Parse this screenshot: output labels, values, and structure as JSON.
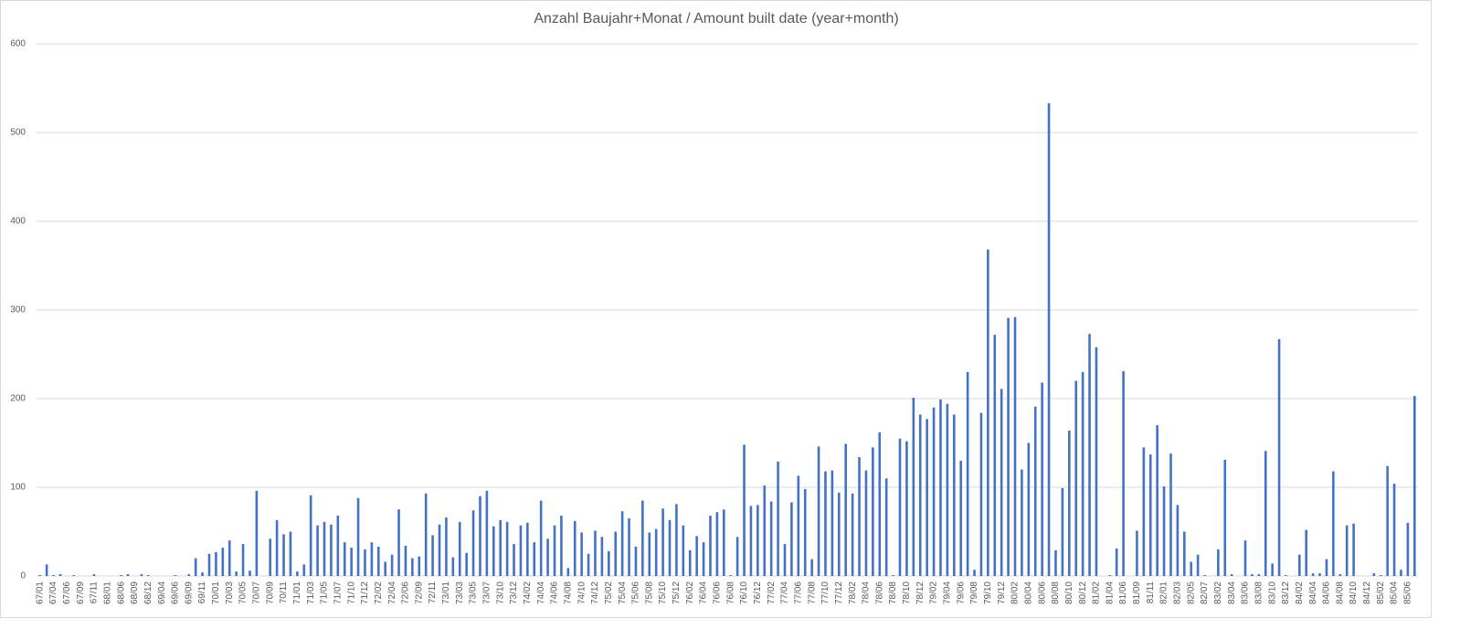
{
  "chart_data": {
    "type": "bar",
    "title": "Anzahl Baujahr+Monat / Amount built date (year+month)",
    "categories": [
      "67/01",
      null,
      "67/04",
      null,
      "67/06",
      null,
      "67/09",
      null,
      "67/11",
      null,
      "68/01",
      null,
      "68/06",
      null,
      "68/09",
      null,
      "68/12",
      null,
      "69/04",
      null,
      "69/06",
      null,
      "69/09",
      null,
      "69/11",
      null,
      "70/01",
      null,
      "70/03",
      null,
      "70/05",
      null,
      "70/07",
      null,
      "70/09",
      null,
      "70/11",
      null,
      "71/01",
      null,
      "71/03",
      null,
      "71/05",
      null,
      "71/07",
      null,
      "71/10",
      null,
      "71/12",
      null,
      "72/02",
      null,
      "72/04",
      null,
      "72/06",
      null,
      "72/09",
      null,
      "72/11",
      null,
      "73/01",
      null,
      "73/03",
      null,
      "73/05",
      null,
      "73/07",
      null,
      "73/10",
      null,
      "73/12",
      null,
      "74/02",
      null,
      "74/04",
      null,
      "74/06",
      null,
      "74/08",
      null,
      "74/10",
      null,
      "74/12",
      null,
      "75/02",
      null,
      "75/04",
      null,
      "75/06",
      null,
      "75/08",
      null,
      "75/10",
      null,
      "75/12",
      null,
      "76/02",
      null,
      "76/04",
      null,
      "76/06",
      null,
      "76/08",
      null,
      "76/10",
      null,
      "76/12",
      null,
      "77/02",
      null,
      "77/04",
      null,
      "77/06",
      null,
      "77/08",
      null,
      "77/10",
      null,
      "77/12",
      null,
      "78/02",
      null,
      "78/04",
      null,
      "78/06",
      null,
      "78/08",
      null,
      "78/10",
      null,
      "78/12",
      null,
      "79/02",
      null,
      "79/04",
      null,
      "79/06",
      null,
      "79/08",
      null,
      "79/10",
      null,
      "79/12",
      null,
      "80/02",
      null,
      "80/04",
      null,
      "80/06",
      null,
      "80/08",
      null,
      "80/10",
      null,
      "80/12",
      null,
      "81/02",
      null,
      "81/04",
      null,
      "81/06",
      null,
      "81/09",
      null,
      "81/11",
      null,
      "82/01",
      null,
      "82/03",
      null,
      "82/05",
      null,
      "82/07",
      null,
      "83/02",
      null,
      "83/04",
      null,
      "83/06",
      null,
      "83/08",
      null,
      "83/10",
      null,
      "83/12",
      null,
      "84/02",
      null,
      "84/04",
      null,
      "84/06",
      null,
      "84/08",
      null,
      "84/10",
      null,
      "84/12",
      null,
      "85/02",
      null,
      "85/04",
      null,
      "85/06",
      null
    ],
    "values": [
      1,
      13,
      1,
      2,
      0,
      1,
      0,
      0,
      2,
      0,
      0,
      0,
      1,
      2,
      0,
      2,
      1,
      0,
      0,
      0,
      1,
      0,
      2,
      20,
      4,
      25,
      27,
      32,
      40,
      5,
      36,
      6,
      96,
      0,
      42,
      63,
      47,
      50,
      5,
      13,
      91,
      57,
      61,
      58,
      68,
      38,
      32,
      88,
      30,
      38,
      33,
      16,
      24,
      75,
      34,
      20,
      22,
      93,
      46,
      58,
      66,
      21,
      61,
      26,
      74,
      90,
      96,
      56,
      63,
      61,
      36,
      57,
      60,
      38,
      85,
      42,
      57,
      68,
      9,
      62,
      49,
      25,
      51,
      44,
      28,
      50,
      73,
      65,
      33,
      85,
      49,
      53,
      76,
      63,
      81,
      57,
      29,
      45,
      38,
      68,
      72,
      75,
      1,
      44,
      148,
      79,
      80,
      102,
      84,
      129,
      36,
      83,
      113,
      98,
      19,
      146,
      118,
      119,
      94,
      149,
      93,
      134,
      119,
      145,
      162,
      110,
      1,
      155,
      152,
      201,
      182,
      177,
      190,
      199,
      194,
      182,
      130,
      230,
      7,
      184,
      368,
      272,
      211,
      291,
      292,
      120,
      150,
      191,
      218,
      533,
      29,
      99,
      164,
      220,
      230,
      273,
      258,
      0,
      1,
      31,
      231,
      0,
      51,
      145,
      137,
      170,
      101,
      138,
      80,
      50,
      16,
      24,
      1,
      0,
      30,
      131,
      2,
      0,
      40,
      2,
      2,
      141,
      14,
      267,
      1,
      0,
      24,
      52,
      3,
      3,
      19,
      118,
      2,
      57,
      59,
      0,
      0,
      3,
      1,
      124,
      104,
      7,
      60,
      203
    ],
    "color": "#4472c4",
    "ylim": [
      0,
      600
    ],
    "yticks": [
      0,
      100,
      200,
      300,
      400,
      500,
      600
    ],
    "grid": true
  }
}
